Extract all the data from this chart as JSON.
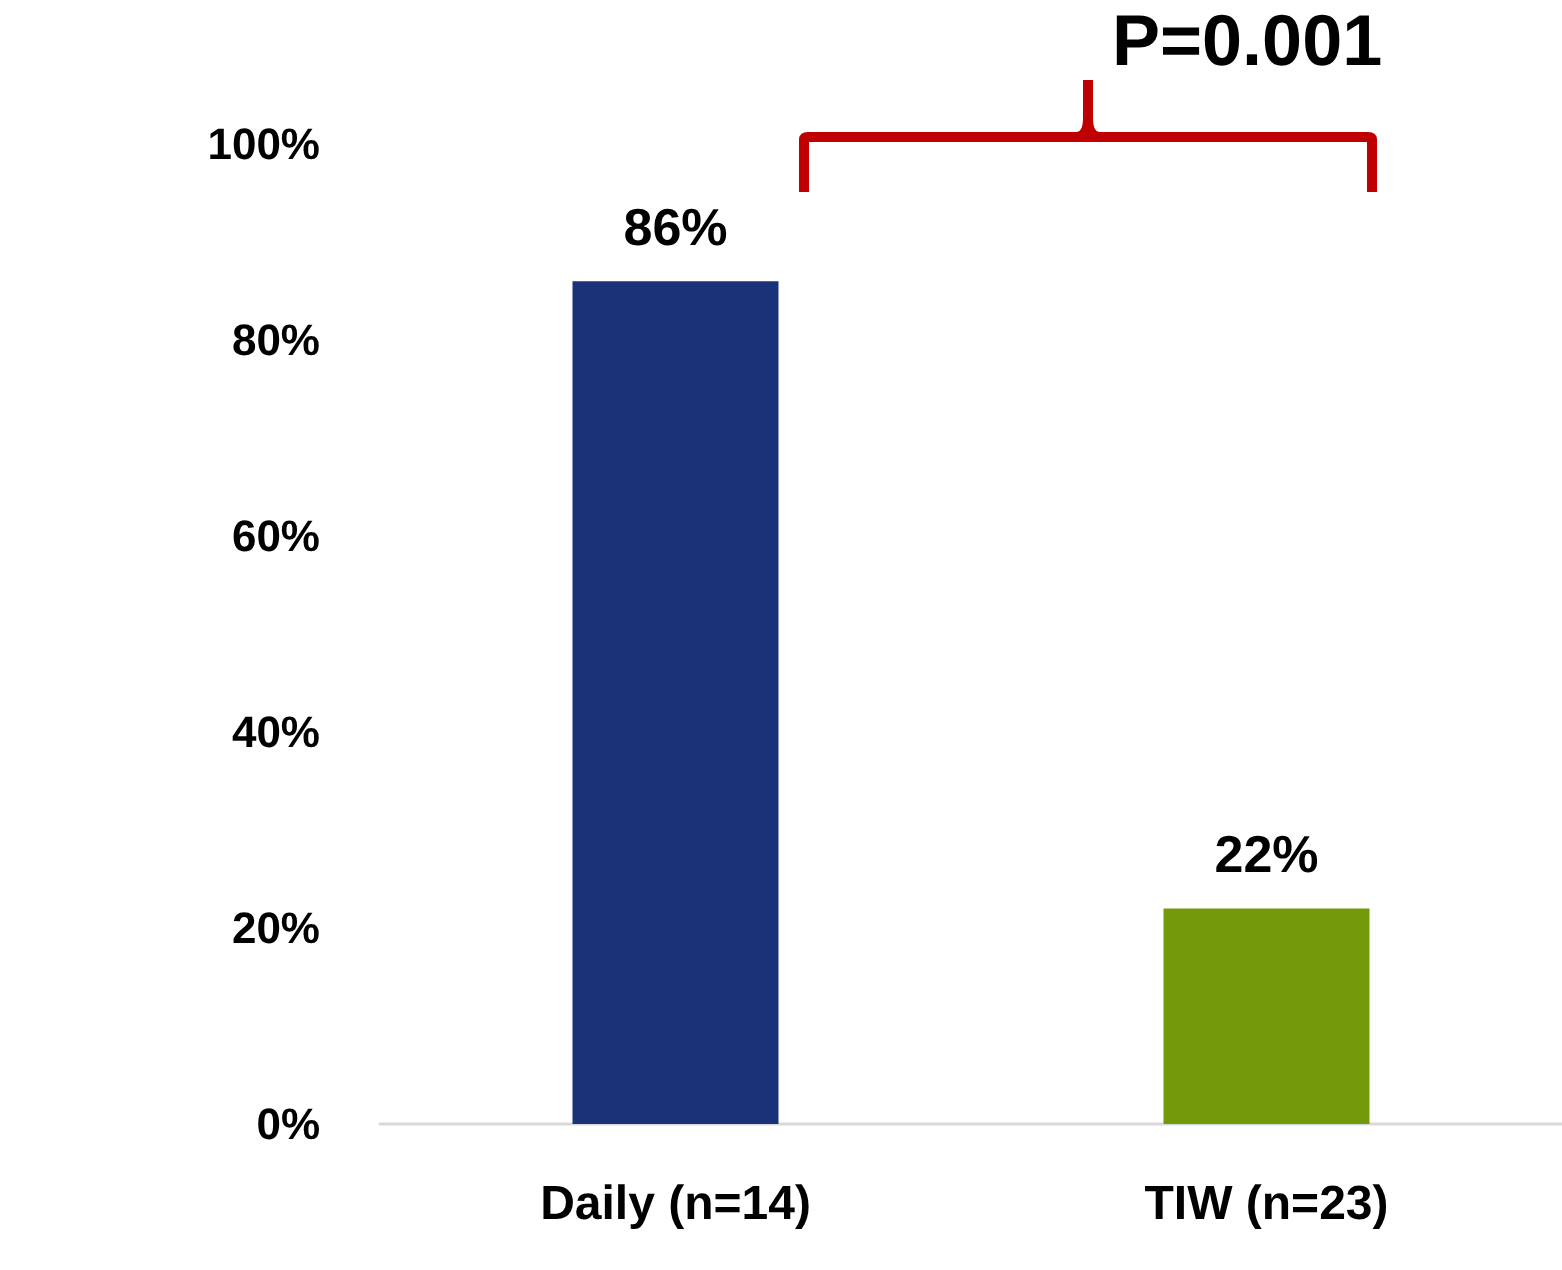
{
  "chart_data": {
    "type": "bar",
    "categories": [
      "Daily (n=14)",
      "TIW (n=23)"
    ],
    "values": [
      86,
      22
    ],
    "colors": [
      "#1a3378",
      "#739a0a"
    ],
    "value_labels": [
      "86%",
      "22%"
    ],
    "ylim": [
      0,
      100
    ],
    "yticks": [
      {
        "value": 0,
        "label": "0%"
      },
      {
        "value": 20,
        "label": "20%"
      },
      {
        "value": 40,
        "label": "40%"
      },
      {
        "value": 60,
        "label": "60%"
      },
      {
        "value": 80,
        "label": "80%"
      },
      {
        "value": 100,
        "label": "100%"
      }
    ],
    "grid": false,
    "annotations": [
      "P=0.001"
    ]
  }
}
